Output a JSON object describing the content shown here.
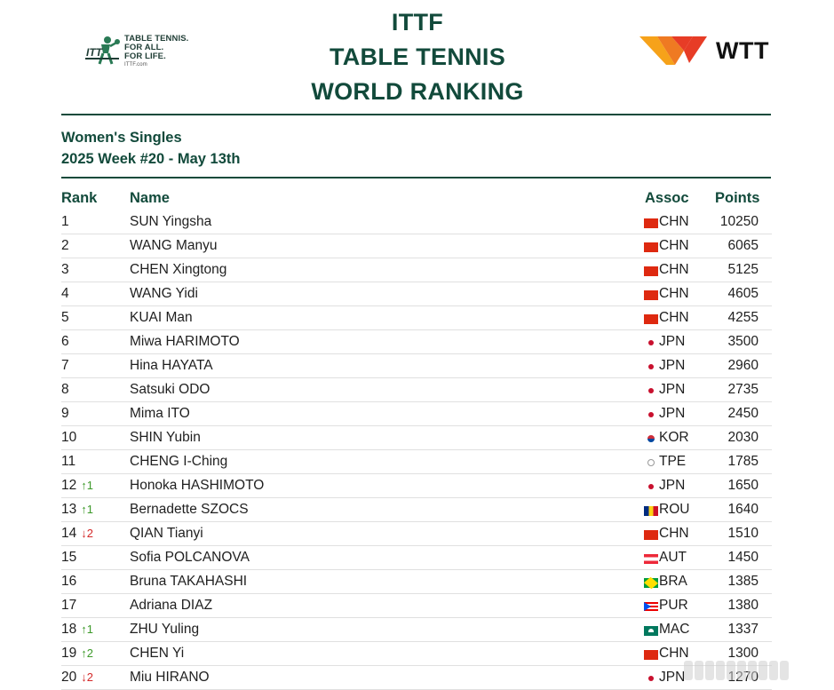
{
  "header": {
    "ittf_logo": {
      "line1": "TABLE TENNIS.",
      "line2": "FOR ALL.",
      "line3": "FOR LIFE.",
      "url": "ITTF.com",
      "icon": "ittf-player-icon"
    },
    "title": [
      "ITTF",
      "TABLE TENNIS",
      "WORLD RANKING"
    ],
    "wtt_logo": {
      "text": "WTT",
      "icon": "wtt-mark-icon",
      "colors": [
        "#f6a21a",
        "#e73c26"
      ]
    }
  },
  "subtitle": {
    "category": "Women's Singles",
    "week": "2025 Week #20 - May 13th"
  },
  "table": {
    "headers": {
      "rank": "Rank",
      "name": "Name",
      "assoc": "Assoc",
      "points": "Points"
    },
    "rows": [
      {
        "rank": "1",
        "move": "",
        "dir": "",
        "name": "SUN Yingsha",
        "flag": "chn",
        "assoc": "CHN",
        "points": "10250"
      },
      {
        "rank": "2",
        "move": "",
        "dir": "",
        "name": "WANG Manyu",
        "flag": "chn",
        "assoc": "CHN",
        "points": "6065"
      },
      {
        "rank": "3",
        "move": "",
        "dir": "",
        "name": "CHEN Xingtong",
        "flag": "chn",
        "assoc": "CHN",
        "points": "5125"
      },
      {
        "rank": "4",
        "move": "",
        "dir": "",
        "name": "WANG Yidi",
        "flag": "chn",
        "assoc": "CHN",
        "points": "4605"
      },
      {
        "rank": "5",
        "move": "",
        "dir": "",
        "name": "KUAI Man",
        "flag": "chn",
        "assoc": "CHN",
        "points": "4255"
      },
      {
        "rank": "6",
        "move": "",
        "dir": "",
        "name": "Miwa HARIMOTO",
        "flag": "jpn",
        "assoc": "JPN",
        "points": "3500"
      },
      {
        "rank": "7",
        "move": "",
        "dir": "",
        "name": "Hina HAYATA",
        "flag": "jpn",
        "assoc": "JPN",
        "points": "2960"
      },
      {
        "rank": "8",
        "move": "",
        "dir": "",
        "name": "Satsuki ODO",
        "flag": "jpn",
        "assoc": "JPN",
        "points": "2735"
      },
      {
        "rank": "9",
        "move": "",
        "dir": "",
        "name": "Mima ITO",
        "flag": "jpn",
        "assoc": "JPN",
        "points": "2450"
      },
      {
        "rank": "10",
        "move": "",
        "dir": "",
        "name": "SHIN Yubin",
        "flag": "kor",
        "assoc": "KOR",
        "points": "2030"
      },
      {
        "rank": "11",
        "move": "",
        "dir": "",
        "name": "CHENG I-Ching",
        "flag": "tpe",
        "assoc": "TPE",
        "points": "1785"
      },
      {
        "rank": "12",
        "move": "↑1",
        "dir": "up",
        "name": "Honoka HASHIMOTO",
        "flag": "jpn",
        "assoc": "JPN",
        "points": "1650"
      },
      {
        "rank": "13",
        "move": "↑1",
        "dir": "up",
        "name": "Bernadette SZOCS",
        "flag": "rou",
        "assoc": "ROU",
        "points": "1640"
      },
      {
        "rank": "14",
        "move": "↓2",
        "dir": "down",
        "name": "QIAN Tianyi",
        "flag": "chn",
        "assoc": "CHN",
        "points": "1510"
      },
      {
        "rank": "15",
        "move": "",
        "dir": "",
        "name": "Sofia POLCANOVA",
        "flag": "aut",
        "assoc": "AUT",
        "points": "1450"
      },
      {
        "rank": "16",
        "move": "",
        "dir": "",
        "name": "Bruna TAKAHASHI",
        "flag": "bra",
        "assoc": "BRA",
        "points": "1385"
      },
      {
        "rank": "17",
        "move": "",
        "dir": "",
        "name": "Adriana DIAZ",
        "flag": "pur",
        "assoc": "PUR",
        "points": "1380"
      },
      {
        "rank": "18",
        "move": "↑1",
        "dir": "up",
        "name": "ZHU Yuling",
        "flag": "mac",
        "assoc": "MAC",
        "points": "1337"
      },
      {
        "rank": "19",
        "move": "↑2",
        "dir": "up",
        "name": "CHEN Yi",
        "flag": "chn",
        "assoc": "CHN",
        "points": "1300"
      },
      {
        "rank": "20",
        "move": "↓2",
        "dir": "down",
        "name": "Miu HIRANO",
        "flag": "jpn",
        "assoc": "JPN",
        "points": "1270"
      }
    ]
  },
  "colors": {
    "brand_green": "#124a3b",
    "up": "#3d9a2a",
    "down": "#d42a2a"
  }
}
